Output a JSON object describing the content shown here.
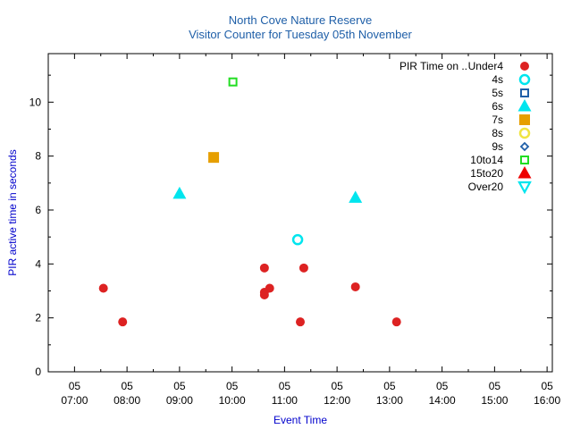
{
  "chart_data": {
    "type": "scatter",
    "title": "North Cove Nature Reserve",
    "subtitle": "Visitor Counter for Tuesday 05th November",
    "xlabel": "Event Time",
    "ylabel": "PIR active time in seconds",
    "x_tick_labels": [
      {
        "day": "05",
        "time": "07:00"
      },
      {
        "day": "05",
        "time": "08:00"
      },
      {
        "day": "05",
        "time": "09:00"
      },
      {
        "day": "05",
        "time": "10:00"
      },
      {
        "day": "05",
        "time": "11:00"
      },
      {
        "day": "05",
        "time": "12:00"
      },
      {
        "day": "05",
        "time": "13:00"
      },
      {
        "day": "05",
        "time": "14:00"
      },
      {
        "day": "05",
        "time": "15:00"
      },
      {
        "day": "05",
        "time": "16:00"
      }
    ],
    "xlim": [
      "06:30",
      "16:06"
    ],
    "ylim": [
      0,
      11.8
    ],
    "y_ticks": [
      0,
      2,
      4,
      6,
      8,
      10
    ],
    "grid": false,
    "legend_title": "PIR Time on ..",
    "legend_position": "top-right",
    "series": [
      {
        "name": "Under4",
        "marker": "circle-filled",
        "color": "#dd2222",
        "points": [
          {
            "x": "07:33",
            "y": 3.1
          },
          {
            "x": "07:55",
            "y": 1.85
          },
          {
            "x": "10:37",
            "y": 3.85
          },
          {
            "x": "10:37",
            "y": 2.95
          },
          {
            "x": "10:37",
            "y": 2.85
          },
          {
            "x": "10:43",
            "y": 3.1
          },
          {
            "x": "11:18",
            "y": 1.85
          },
          {
            "x": "11:22",
            "y": 3.85
          },
          {
            "x": "12:21",
            "y": 3.15
          },
          {
            "x": "13:08",
            "y": 1.85
          }
        ]
      },
      {
        "name": "4s",
        "marker": "circle-open",
        "color": "#00e5ee",
        "points": [
          {
            "x": "11:15",
            "y": 4.9
          }
        ]
      },
      {
        "name": "5s",
        "marker": "square-open",
        "color": "#1f5fa8",
        "points": []
      },
      {
        "name": "6s",
        "marker": "triangle-filled",
        "color": "#00e5ee",
        "points": [
          {
            "x": "09:00",
            "y": 6.6
          },
          {
            "x": "12:21",
            "y": 6.45
          }
        ]
      },
      {
        "name": "7s",
        "marker": "square-filled",
        "color": "#e69f00",
        "points": [
          {
            "x": "09:39",
            "y": 7.95
          }
        ]
      },
      {
        "name": "8s",
        "marker": "circle-open",
        "color": "#f0e442",
        "points": []
      },
      {
        "name": "9s",
        "marker": "diamond-open",
        "color": "#1f5fa8",
        "points": []
      },
      {
        "name": "10to14",
        "marker": "square-open",
        "color": "#22dd22",
        "points": [
          {
            "x": "10:01",
            "y": 10.75
          }
        ]
      },
      {
        "name": "15to20",
        "marker": "triangle-filled",
        "color": "#ee0000",
        "points": []
      },
      {
        "name": "Over20",
        "marker": "triangle-down-open",
        "color": "#00e5ee",
        "points": []
      }
    ]
  }
}
